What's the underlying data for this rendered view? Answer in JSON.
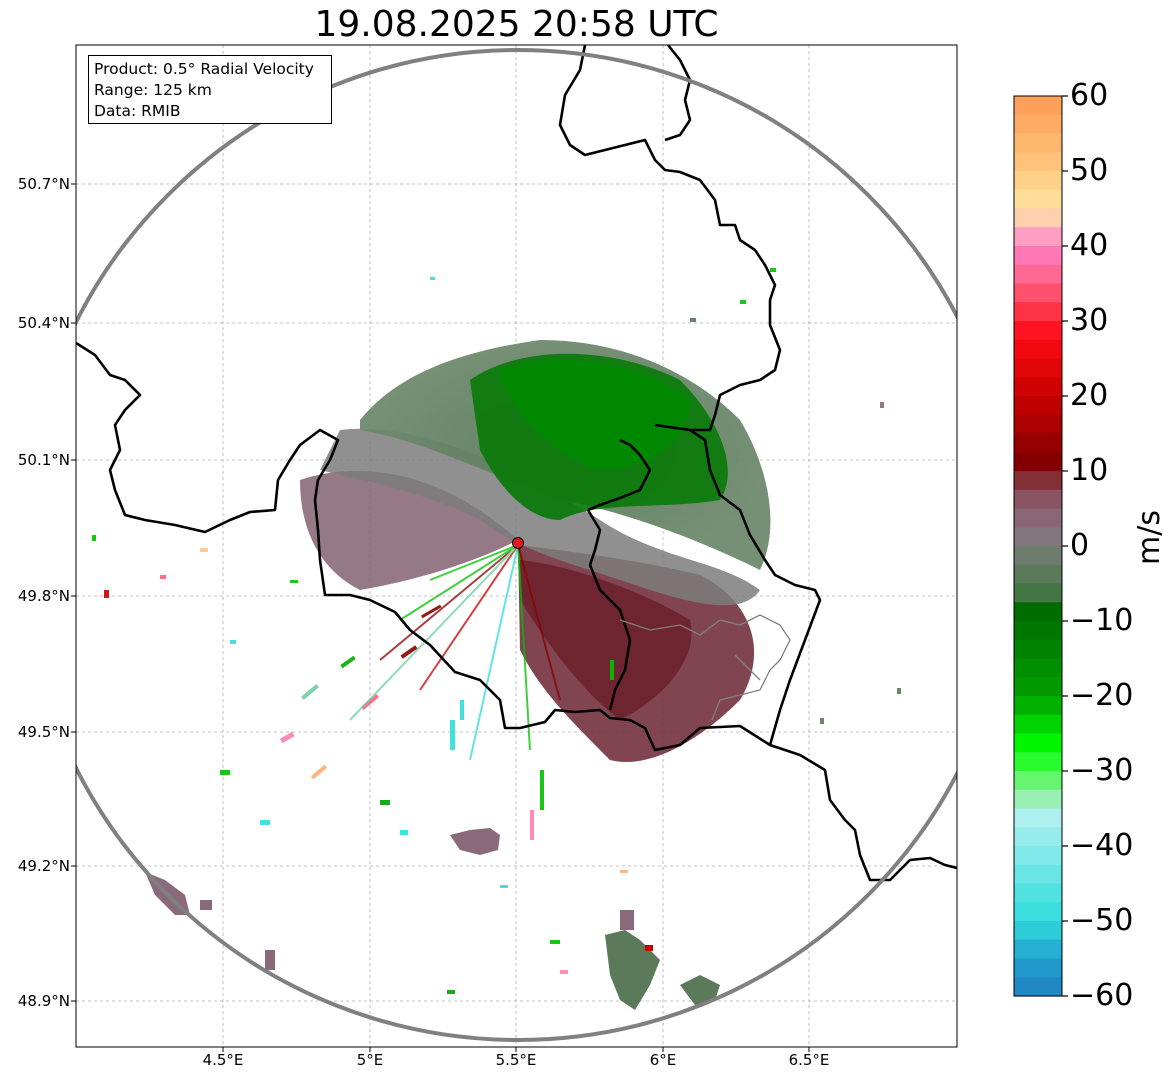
{
  "title": "19.08.2025 20:58 UTC",
  "info_box": {
    "lines": [
      "Product: 0.5° Radial Velocity",
      "Range: 125 km",
      "Data: RMIB"
    ]
  },
  "map": {
    "lon_range": [
      4.0,
      7.0
    ],
    "lat_range": [
      48.8,
      50.99
    ],
    "lon_ticks": [
      "4.5°E",
      "5°E",
      "5.5°E",
      "6°E",
      "6.5°E"
    ],
    "lat_ticks": [
      "50.7°N",
      "50.4°N",
      "50.1°N",
      "49.8°N",
      "49.5°N",
      "49.2°N",
      "48.9°N"
    ],
    "radar_site": {
      "lon": 5.505,
      "lat": 49.915,
      "color": "#e41a1c"
    },
    "range_ring_color": "#808080",
    "gridlines": true
  },
  "colorbar": {
    "min": -60,
    "max": 60,
    "tick_labels": [
      "60",
      "50",
      "40",
      "30",
      "20",
      "10",
      "0",
      "−10",
      "−20",
      "−30",
      "−40",
      "−50",
      "−60"
    ],
    "unit": "m/s",
    "stops": [
      {
        "v": 60,
        "c": "#ff9a55"
      },
      {
        "v": 50,
        "c": "#ffc880"
      },
      {
        "v": 45,
        "c": "#ffe6a0"
      },
      {
        "v": 42,
        "c": "#ffb0c0"
      },
      {
        "v": 40,
        "c": "#ff80c8"
      },
      {
        "v": 35,
        "c": "#ff6080"
      },
      {
        "v": 28,
        "c": "#ff0a14"
      },
      {
        "v": 20,
        "c": "#c80000"
      },
      {
        "v": 10,
        "c": "#7a0000"
      },
      {
        "v": 8,
        "c": "#8a4a55"
      },
      {
        "v": 3,
        "c": "#8a6a7a"
      },
      {
        "v": 0,
        "c": "#7d7d7d"
      },
      {
        "v": -3,
        "c": "#5a7a5a"
      },
      {
        "v": -6,
        "c": "#5a7a5a"
      },
      {
        "v": -7,
        "c": "#006400"
      },
      {
        "v": -20,
        "c": "#00a000"
      },
      {
        "v": -27,
        "c": "#00ff00"
      },
      {
        "v": -33,
        "c": "#90f0a0"
      },
      {
        "v": -36,
        "c": "#b0f0f0"
      },
      {
        "v": -50,
        "c": "#30dcdc"
      },
      {
        "v": -55,
        "c": "#20a0d0"
      },
      {
        "v": -60,
        "c": "#2080c0"
      }
    ]
  }
}
